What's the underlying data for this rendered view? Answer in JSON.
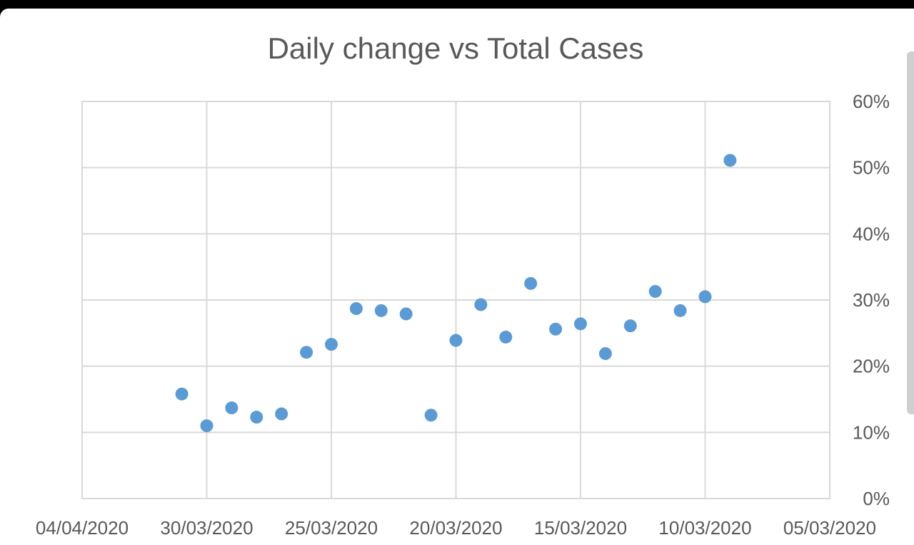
{
  "chart_data": {
    "type": "scatter",
    "title": "Daily change vs Total Cases",
    "xlabel": "",
    "ylabel": "",
    "x_axis": {
      "kind": "date",
      "reversed": true,
      "min": "2020-03-05",
      "max": "2020-04-04",
      "tick_labels": [
        "04/04/2020",
        "30/03/2020",
        "25/03/2020",
        "20/03/2020",
        "15/03/2020",
        "10/03/2020",
        "05/03/2020"
      ],
      "ticks": [
        "2020-04-04",
        "2020-03-30",
        "2020-03-25",
        "2020-03-20",
        "2020-03-15",
        "2020-03-10",
        "2020-03-05"
      ]
    },
    "y_axis": {
      "position": "right",
      "min": 0,
      "max": 0.6,
      "tick_labels": [
        "0%",
        "10%",
        "20%",
        "30%",
        "40%",
        "50%",
        "60%"
      ],
      "ticks": [
        0,
        0.1,
        0.2,
        0.3,
        0.4,
        0.5,
        0.6
      ]
    },
    "grid": true,
    "legend": "none",
    "marker_color": "#5b9bd5",
    "points": [
      {
        "x": "2020-03-31",
        "y": 0.158
      },
      {
        "x": "2020-03-30",
        "y": 0.11
      },
      {
        "x": "2020-03-29",
        "y": 0.137
      },
      {
        "x": "2020-03-28",
        "y": 0.123
      },
      {
        "x": "2020-03-27",
        "y": 0.128
      },
      {
        "x": "2020-03-26",
        "y": 0.221
      },
      {
        "x": "2020-03-25",
        "y": 0.233
      },
      {
        "x": "2020-03-24",
        "y": 0.287
      },
      {
        "x": "2020-03-23",
        "y": 0.284
      },
      {
        "x": "2020-03-22",
        "y": 0.279
      },
      {
        "x": "2020-03-21",
        "y": 0.126
      },
      {
        "x": "2020-03-20",
        "y": 0.239
      },
      {
        "x": "2020-03-19",
        "y": 0.293
      },
      {
        "x": "2020-03-18",
        "y": 0.244
      },
      {
        "x": "2020-03-17",
        "y": 0.325
      },
      {
        "x": "2020-03-16",
        "y": 0.256
      },
      {
        "x": "2020-03-15",
        "y": 0.264
      },
      {
        "x": "2020-03-14",
        "y": 0.219
      },
      {
        "x": "2020-03-13",
        "y": 0.261
      },
      {
        "x": "2020-03-12",
        "y": 0.313
      },
      {
        "x": "2020-03-11",
        "y": 0.284
      },
      {
        "x": "2020-03-10",
        "y": 0.305
      },
      {
        "x": "2020-03-09",
        "y": 0.511
      }
    ]
  }
}
